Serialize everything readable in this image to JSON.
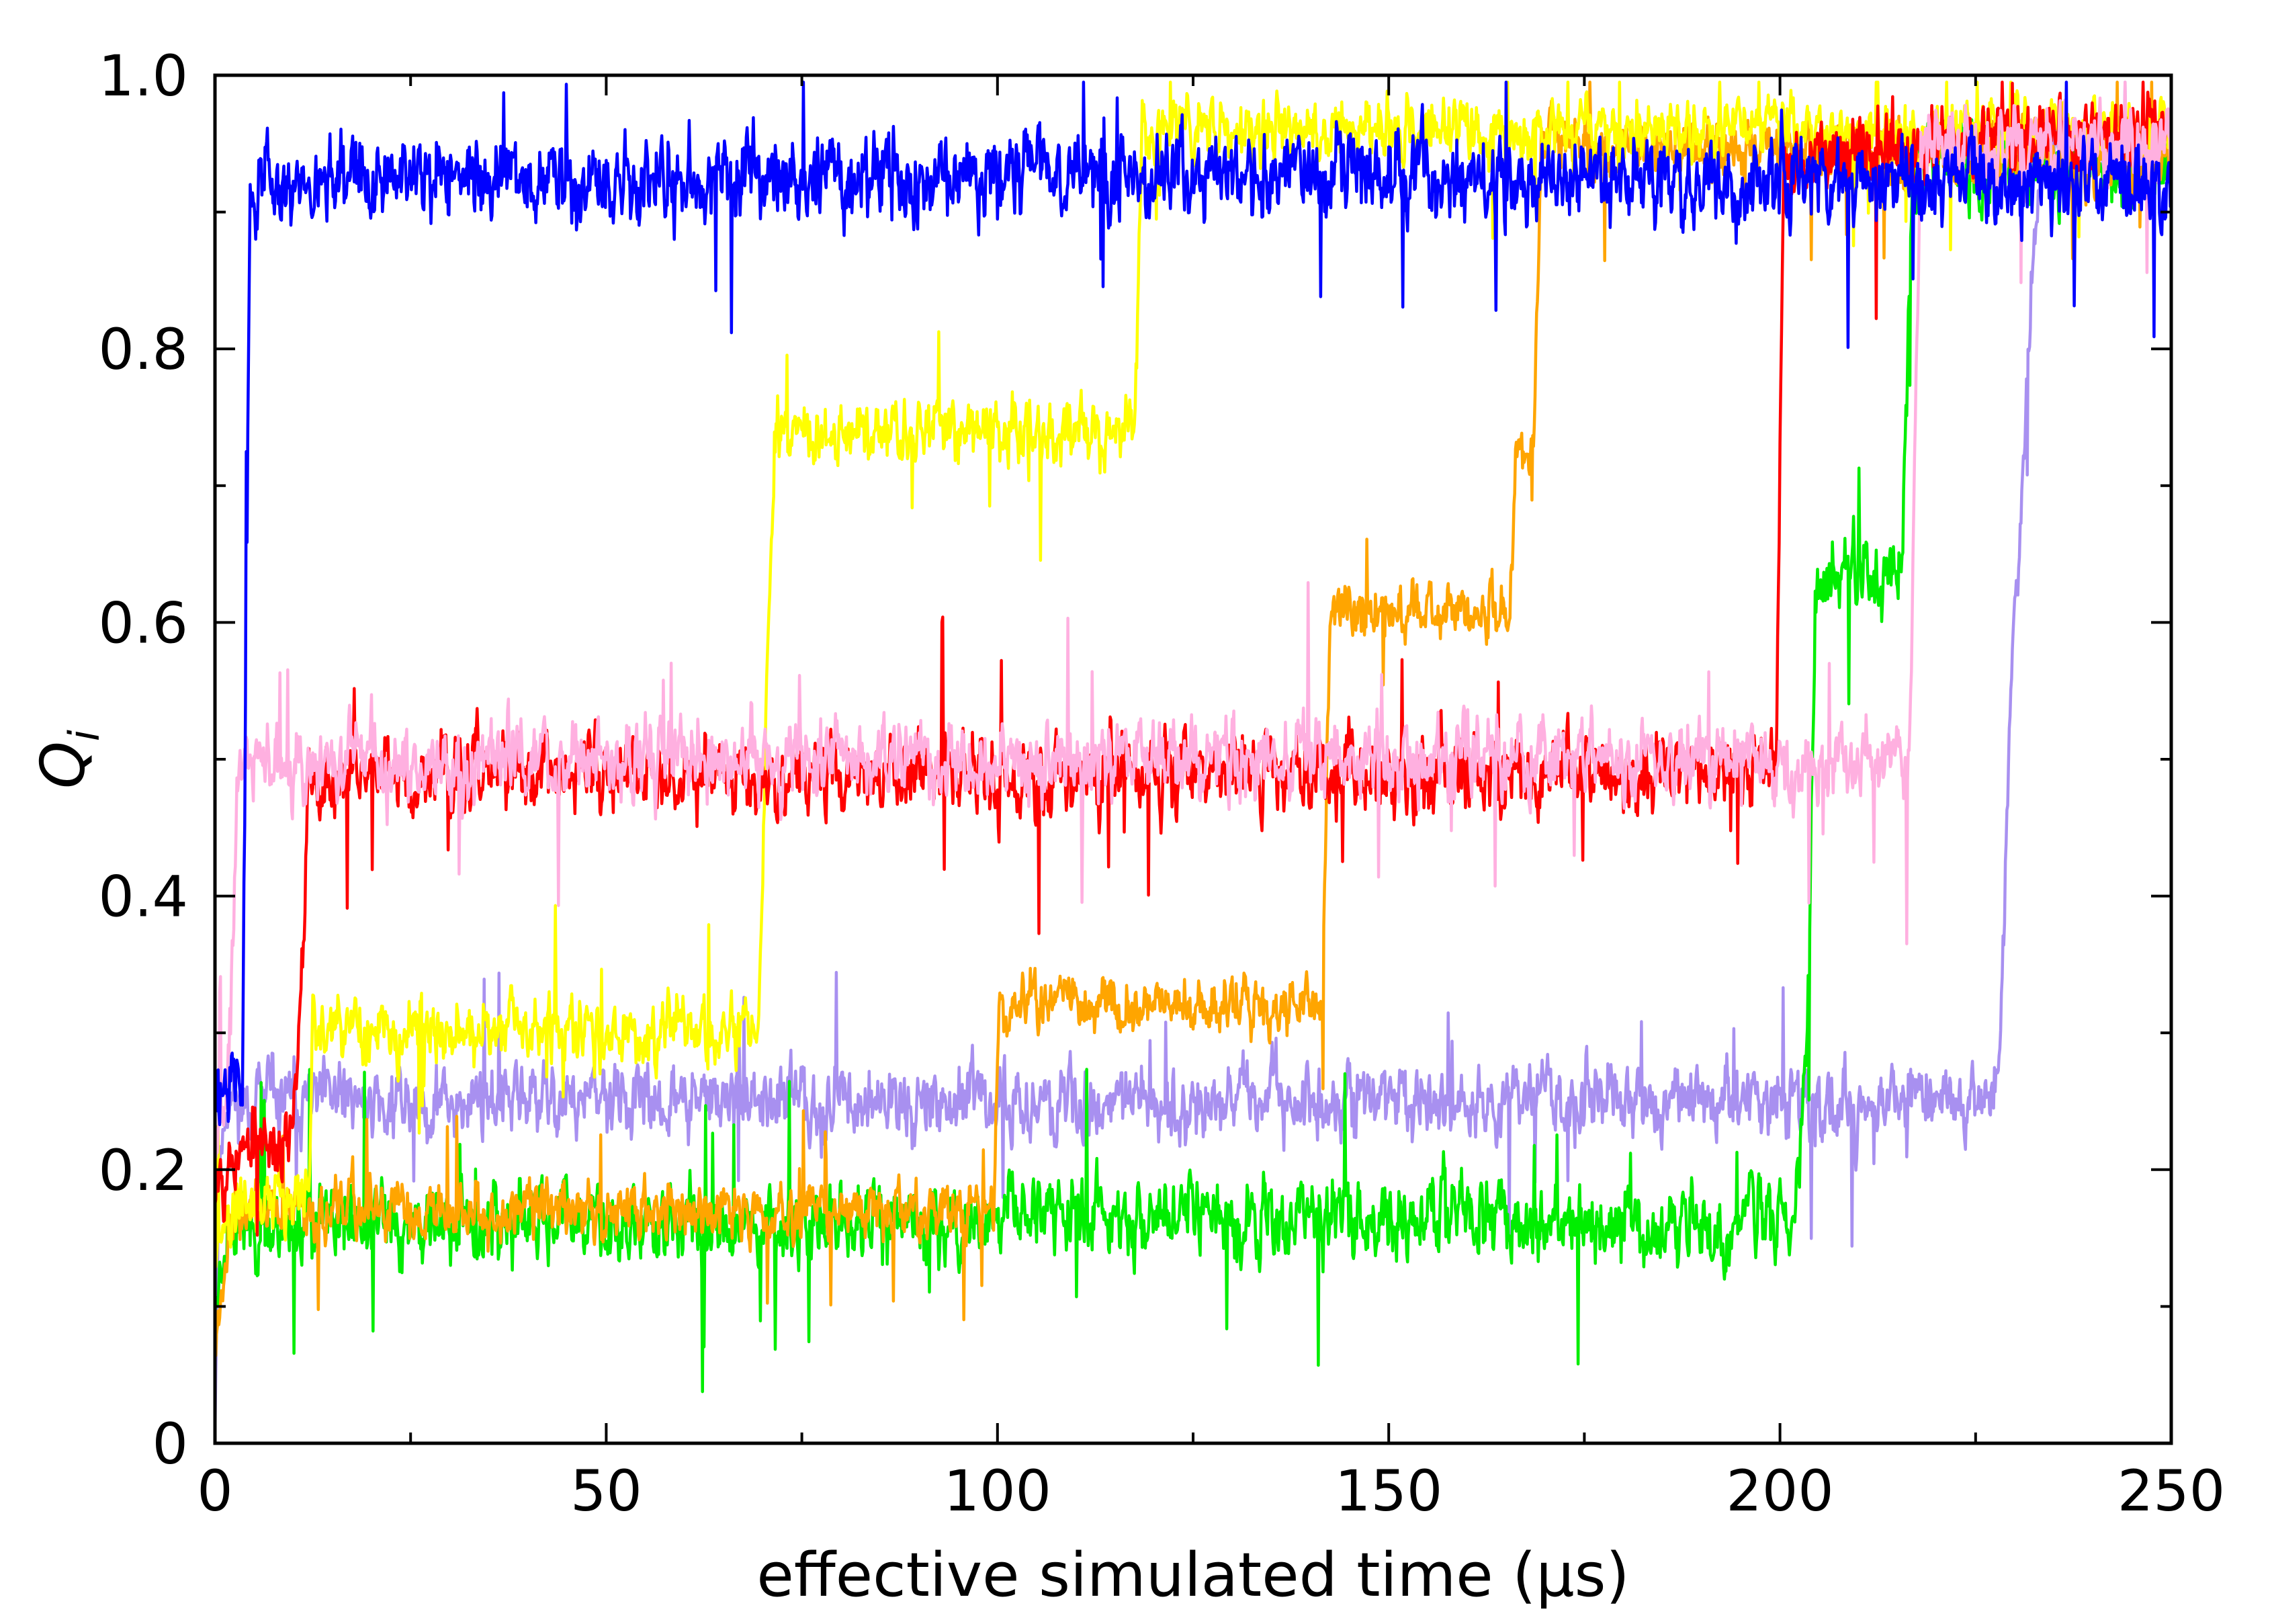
{
  "chart_data": {
    "type": "line",
    "title": "",
    "xlabel": "effective simulated time (µs)",
    "ylabel_main": "Q",
    "ylabel_sub": "i",
    "xlim": [
      0,
      250
    ],
    "ylim": [
      0,
      1.0
    ],
    "x_ticks": [
      {
        "value": 0,
        "label": "0"
      },
      {
        "value": 50,
        "label": "50"
      },
      {
        "value": 100,
        "label": "100"
      },
      {
        "value": 150,
        "label": "150"
      },
      {
        "value": 200,
        "label": "200"
      },
      {
        "value": 250,
        "label": "250"
      }
    ],
    "y_ticks": [
      {
        "value": 0,
        "label": "0"
      },
      {
        "value": 0.2,
        "label": "0.2"
      },
      {
        "value": 0.4,
        "label": "0.4"
      },
      {
        "value": 0.6,
        "label": "0.6"
      },
      {
        "value": 0.8,
        "label": "0.8"
      },
      {
        "value": 1.0,
        "label": "1.0"
      }
    ],
    "x_minor_step": 25,
    "y_minor_step": 0.1,
    "noise_sample_step": 0.1,
    "series": [
      {
        "name": "purple",
        "color": "#A890F0",
        "noise": 0.018,
        "seed": 11,
        "levels": [
          [
            0,
            0.02
          ],
          [
            0.5,
            0.2
          ],
          [
            1.5,
            0.25
          ],
          [
            228,
            0.25
          ],
          [
            229.5,
            0.55
          ],
          [
            231,
            0.7
          ],
          [
            232.5,
            0.88
          ],
          [
            234,
            0.95
          ],
          [
            250,
            0.94
          ]
        ]
      },
      {
        "name": "green",
        "color": "#00EE00",
        "noise": 0.02,
        "seed": 23,
        "levels": [
          [
            0,
            0.1
          ],
          [
            1.5,
            0.16
          ],
          [
            100,
            0.16
          ],
          [
            101,
            0.17
          ],
          [
            202,
            0.16
          ],
          [
            203.5,
            0.3
          ],
          [
            204.5,
            0.6
          ],
          [
            205.5,
            0.64
          ],
          [
            215.5,
            0.64
          ],
          [
            217,
            0.94
          ],
          [
            250,
            0.93
          ]
        ]
      },
      {
        "name": "orange",
        "color": "#FFA500",
        "noise": 0.015,
        "seed": 37,
        "levels": [
          [
            0,
            0.08
          ],
          [
            2,
            0.17
          ],
          [
            99.5,
            0.17
          ],
          [
            100.2,
            0.32
          ],
          [
            141.5,
            0.32
          ],
          [
            142.5,
            0.61
          ],
          [
            165.5,
            0.61
          ],
          [
            166.2,
            0.72
          ],
          [
            168.5,
            0.72
          ],
          [
            169.5,
            0.95
          ],
          [
            250,
            0.94
          ]
        ]
      },
      {
        "name": "yellow",
        "color": "#FFFF00",
        "noise": 0.016,
        "seed": 41,
        "levels": [
          [
            0,
            0.13
          ],
          [
            3,
            0.18
          ],
          [
            12,
            0.18
          ],
          [
            12.5,
            0.3
          ],
          [
            69.5,
            0.3
          ],
          [
            70.5,
            0.55
          ],
          [
            71.5,
            0.74
          ],
          [
            117.5,
            0.74
          ],
          [
            118.5,
            0.96
          ],
          [
            250,
            0.96
          ]
        ]
      },
      {
        "name": "red",
        "color": "#FF0000",
        "noise": 0.02,
        "seed": 53,
        "levels": [
          [
            0,
            0.2
          ],
          [
            2,
            0.21
          ],
          [
            10,
            0.22
          ],
          [
            11,
            0.32
          ],
          [
            12,
            0.49
          ],
          [
            199.5,
            0.49
          ],
          [
            200.5,
            0.94
          ],
          [
            250,
            0.96
          ]
        ]
      },
      {
        "name": "pink",
        "color": "#FFB0E0",
        "noise": 0.02,
        "seed": 67,
        "levels": [
          [
            0,
            0.22
          ],
          [
            2,
            0.3
          ],
          [
            3,
            0.5
          ],
          [
            216.5,
            0.5
          ],
          [
            218,
            0.95
          ],
          [
            250,
            0.95
          ]
        ]
      },
      {
        "name": "blue",
        "color": "#0000FF",
        "noise": 0.022,
        "seed": 79,
        "levels": [
          [
            0,
            0.26
          ],
          [
            3.5,
            0.28
          ],
          [
            4.5,
            0.92
          ],
          [
            118,
            0.93
          ],
          [
            250,
            0.92
          ]
        ]
      }
    ]
  }
}
